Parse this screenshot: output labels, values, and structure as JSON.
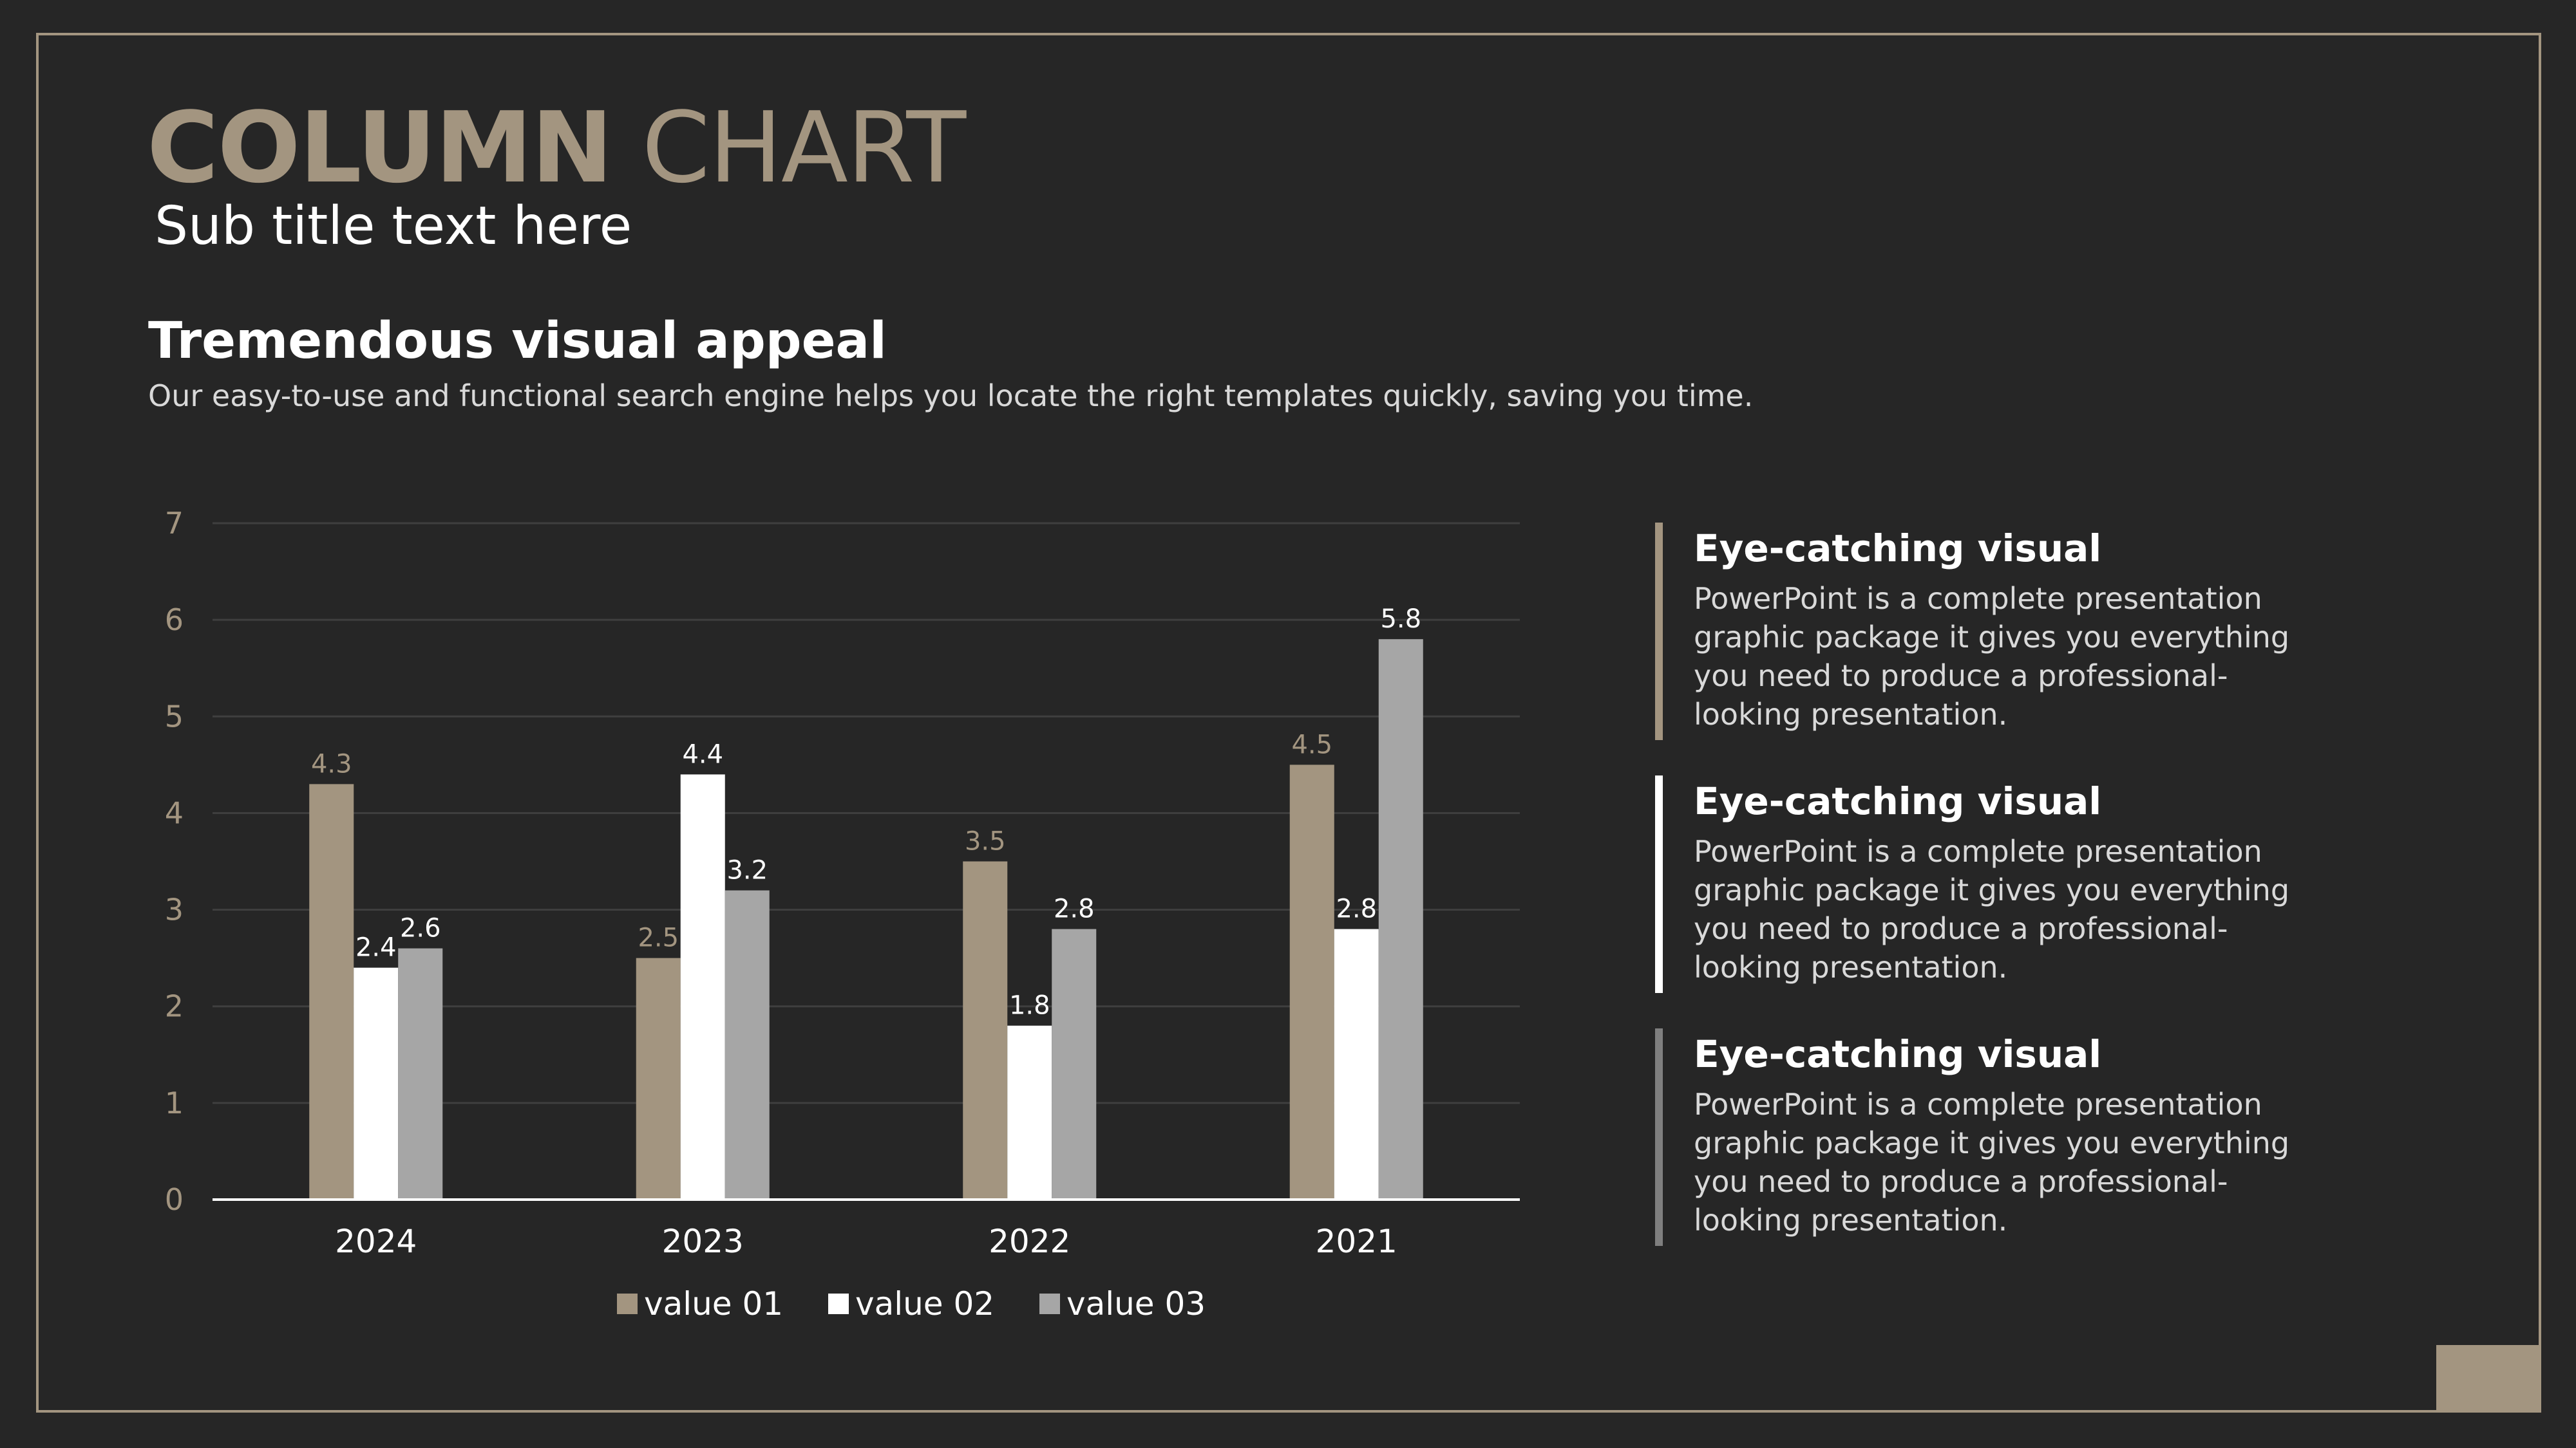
{
  "header": {
    "title_bold": "COLUMN",
    "title_light": "CHART",
    "subtitle": "Sub title text here"
  },
  "section": {
    "heading": "Tremendous visual appeal",
    "description": "Our easy-to-use and functional search engine helps you locate the right templates quickly, saving you time."
  },
  "chart_data": {
    "type": "bar",
    "categories": [
      "2024",
      "2023",
      "2022",
      "2021"
    ],
    "series": [
      {
        "name": "value 01",
        "values": [
          4.3,
          2.5,
          3.5,
          4.5
        ],
        "color": "#a39580",
        "label_color": "#a39580"
      },
      {
        "name": "value 02",
        "values": [
          2.4,
          4.4,
          1.8,
          2.8
        ],
        "color": "#ffffff",
        "label_color": "#ffffff"
      },
      {
        "name": "value 03",
        "values": [
          2.6,
          3.2,
          2.8,
          5.8
        ],
        "color": "#a6a6a6",
        "label_color": "#ffffff"
      }
    ],
    "yticks": [
      "0",
      "1",
      "2",
      "3",
      "4",
      "5",
      "6",
      "7"
    ],
    "ylim": [
      0,
      7
    ],
    "grid": true,
    "legend": "bottom"
  },
  "info_items": [
    {
      "title": "Eye-catching visual",
      "text": "PowerPoint is a complete presentation graphic package it gives you everything you need to produce a professional-looking presentation.",
      "bar_color": "#a39580"
    },
    {
      "title": "Eye-catching visual",
      "text": "PowerPoint is a complete presentation graphic package it gives you everything you need to produce a professional-looking presentation.",
      "bar_color": "#ffffff"
    },
    {
      "title": "Eye-catching visual",
      "text": "PowerPoint is a complete presentation graphic package it gives you everything you need to produce a professional-looking presentation.",
      "bar_color": "#7f7f7f"
    }
  ],
  "theme": {
    "accent": "#a39580",
    "background": "#262626"
  }
}
